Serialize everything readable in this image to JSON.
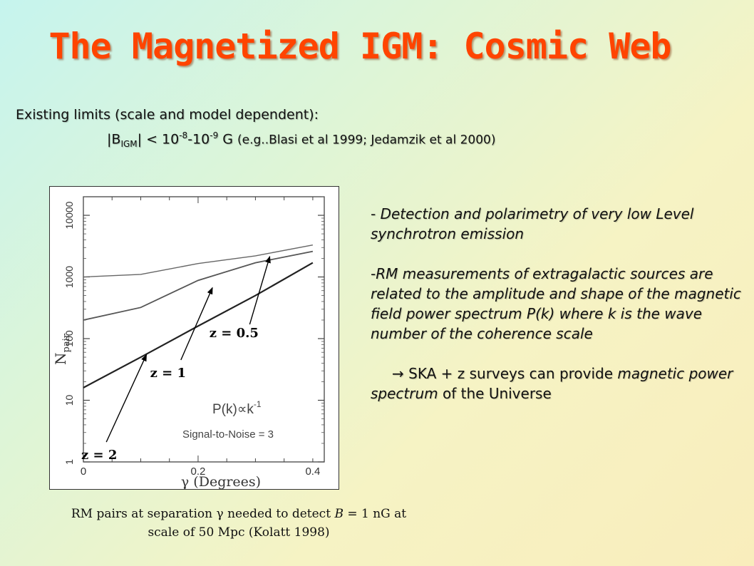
{
  "slide": {
    "title": "The Magnetized IGM: Cosmic Web",
    "limits_line1": "Existing limits (scale and model dependent):",
    "limits_b": "|B",
    "limits_sub": "IGM",
    "limits_mid1": "| < 10",
    "limits_exp1": "-8",
    "limits_dash": "-10",
    "limits_exp2": "-9",
    "limits_unit": " G  ",
    "limits_ref": "(e.g..Blasi et al 1999; Jedamzik et al 2000)",
    "bullet1": "- Detection and polarimetry of very low Level synchrotron emission",
    "bullet2": "-RM measurements of extragalactic sources are related to the amplitude and shape of the magnetic field power spectrum P(k) where k is the wave number of the coherence scale",
    "bullet3_arrow": "→",
    "bullet3_part1": " SKA + z surveys can provide ",
    "bullet3_italic": "magnetic power spectrum",
    "bullet3_part2": " of the Universe",
    "caption_line1_a": "RM pairs at separation ",
    "caption_gamma": "γ",
    "caption_line1_b": " needed to detect ",
    "caption_B": "B",
    "caption_line1_c": " = 1 nG  at",
    "caption_line2": "scale of 50 Mpc (Kolatt 1998)"
  },
  "chart_data": {
    "type": "line",
    "xlabel": "γ  (Degrees)",
    "ylabel": "N",
    "ylabel_sub": "pair",
    "xscale": "linear",
    "yscale": "log",
    "xlim": [
      0,
      0.42
    ],
    "ylim": [
      1,
      20000
    ],
    "x_ticks": [
      {
        "v": 0,
        "label": "0"
      },
      {
        "v": 0.2,
        "label": "0.2"
      },
      {
        "v": 0.4,
        "label": "0.4"
      }
    ],
    "y_ticks": [
      {
        "v": 1,
        "label": "1"
      },
      {
        "v": 10,
        "label": "10"
      },
      {
        "v": 100,
        "label": "100"
      },
      {
        "v": 1000,
        "label": "1000"
      },
      {
        "v": 10000,
        "label": "10000"
      }
    ],
    "annotation_formula": "P(k)∝k",
    "annotation_formula_exp": "-1",
    "annotation_snr": "Signal-to-Noise = 3",
    "series": [
      {
        "label": "z = 2",
        "x": [
          0,
          0.1,
          0.2,
          0.3,
          0.4
        ],
        "y": [
          16,
          50,
          160,
          500,
          1700
        ]
      },
      {
        "label": "z = 1",
        "x": [
          0,
          0.1,
          0.2,
          0.3,
          0.4
        ],
        "y": [
          200,
          320,
          880,
          1700,
          2600
        ]
      },
      {
        "label": "z = 0.5",
        "x": [
          0,
          0.1,
          0.2,
          0.3,
          0.4
        ],
        "y": [
          1000,
          1100,
          1650,
          2200,
          3300
        ]
      }
    ],
    "arrows": [
      {
        "label": "z = 2",
        "from": [
          0.04,
          2.1
        ],
        "to": [
          0.11,
          55
        ]
      },
      {
        "label": "z = 1",
        "from": [
          0.17,
          45
        ],
        "to": [
          0.225,
          670
        ]
      },
      {
        "label": "z = 0.5",
        "from": [
          0.29,
          170
        ],
        "to": [
          0.325,
          2150
        ]
      }
    ]
  }
}
